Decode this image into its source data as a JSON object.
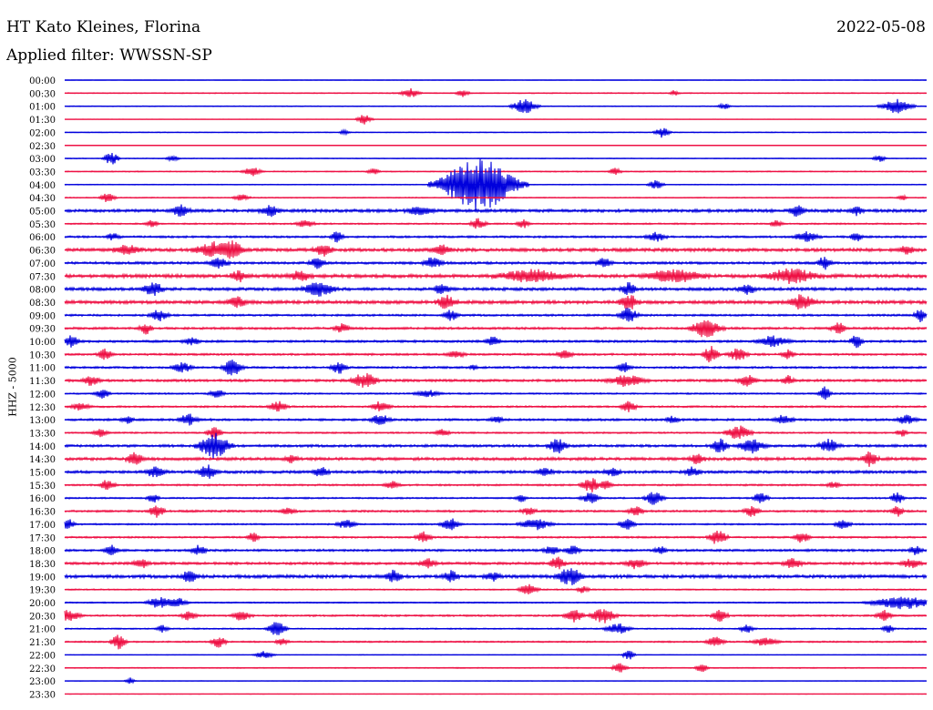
{
  "header": {
    "station": "HT Kato Kleines, Florina",
    "date": "2022-05-08",
    "filter_text": "Applied filter: WWSSN-SP",
    "channel_label": "HHZ - 5000"
  },
  "chart_data": {
    "type": "line",
    "title": "HT Kato Kleines, Florina",
    "subtitle": "Applied filter: WWSSN-SP",
    "ylabel": "HHZ - 5000",
    "colors": {
      "even_rows": "#0000dd",
      "odd_rows": "#ee1144"
    },
    "rows": [
      "00:00",
      "00:30",
      "01:00",
      "01:30",
      "02:00",
      "02:30",
      "03:00",
      "03:30",
      "04:00",
      "04:30",
      "05:00",
      "05:30",
      "06:00",
      "06:30",
      "07:00",
      "07:30",
      "08:00",
      "08:30",
      "09:00",
      "09:30",
      "10:00",
      "10:30",
      "11:00",
      "11:30",
      "12:00",
      "12:30",
      "13:00",
      "13:30",
      "14:00",
      "14:30",
      "15:00",
      "15:30",
      "16:00",
      "16:30",
      "17:00",
      "17:30",
      "18:00",
      "18:30",
      "19:00",
      "19:30",
      "20:00",
      "20:30",
      "21:00",
      "21:30",
      "22:00",
      "22:30",
      "23:00",
      "23:30"
    ],
    "noise_level": [
      0.1,
      0.4,
      0.3,
      0.1,
      0.3,
      0.1,
      0.3,
      0.4,
      0.3,
      0.4,
      1.2,
      0.6,
      0.8,
      1.3,
      1.0,
      1.4,
      1.2,
      1.3,
      0.8,
      0.9,
      0.9,
      0.8,
      0.8,
      1.0,
      0.6,
      0.7,
      0.9,
      0.6,
      1.0,
      1.2,
      1.1,
      0.7,
      0.6,
      0.8,
      0.6,
      0.7,
      0.9,
      1.0,
      1.3,
      0.5,
      0.5,
      0.7,
      0.5,
      0.6,
      0.2,
      0.4,
      0.2,
      0.1
    ],
    "events": [
      [],
      [
        [
          450,
          6,
          5
        ],
        [
          508,
          4,
          4
        ],
        [
          740,
          3,
          3
        ]
      ],
      [
        [
          576,
          8,
          8
        ],
        [
          795,
          4,
          3
        ],
        [
          984,
          10,
          8
        ]
      ],
      [
        [
          400,
          5,
          6
        ]
      ],
      [
        [
          378,
          3,
          3
        ],
        [
          727,
          5,
          6
        ]
      ],
      [],
      [
        [
          122,
          5,
          7
        ],
        [
          190,
          4,
          3
        ],
        [
          965,
          4,
          4
        ]
      ],
      [
        [
          277,
          6,
          5
        ],
        [
          410,
          4,
          3
        ],
        [
          675,
          4,
          4
        ]
      ],
      [
        [
          525,
          25,
          30
        ],
        [
          720,
          5,
          5
        ]
      ],
      [
        [
          118,
          5,
          5
        ],
        [
          265,
          5,
          4
        ],
        [
          990,
          3,
          3
        ]
      ],
      [
        [
          198,
          6,
          6
        ],
        [
          296,
          6,
          6
        ],
        [
          460,
          8,
          5
        ],
        [
          875,
          5,
          6
        ],
        [
          940,
          4,
          5
        ]
      ],
      [
        [
          167,
          4,
          4
        ],
        [
          335,
          6,
          4
        ],
        [
          525,
          5,
          6
        ],
        [
          574,
          4,
          5
        ],
        [
          852,
          4,
          4
        ]
      ],
      [
        [
          124,
          4,
          4
        ],
        [
          370,
          4,
          6
        ],
        [
          720,
          6,
          5
        ],
        [
          885,
          8,
          5
        ],
        [
          940,
          4,
          5
        ]
      ],
      [
        [
          140,
          8,
          6
        ],
        [
          235,
          12,
          8
        ],
        [
          257,
          6,
          10
        ],
        [
          355,
          6,
          6
        ],
        [
          485,
          6,
          6
        ],
        [
          995,
          4,
          6
        ]
      ],
      [
        [
          240,
          6,
          6
        ],
        [
          348,
          5,
          6
        ],
        [
          475,
          6,
          6
        ],
        [
          663,
          5,
          5
        ],
        [
          905,
          4,
          8
        ]
      ],
      [
        [
          262,
          5,
          6
        ],
        [
          330,
          7,
          6
        ],
        [
          583,
          20,
          7
        ],
        [
          740,
          18,
          7
        ],
        [
          870,
          16,
          8
        ]
      ],
      [
        [
          168,
          6,
          8
        ],
        [
          350,
          10,
          8
        ],
        [
          485,
          5,
          6
        ],
        [
          690,
          5,
          7
        ],
        [
          820,
          5,
          6
        ]
      ],
      [
        [
          260,
          6,
          6
        ],
        [
          490,
          6,
          7
        ],
        [
          690,
          6,
          8
        ],
        [
          880,
          8,
          8
        ]
      ],
      [
        [
          175,
          6,
          6
        ],
        [
          495,
          5,
          6
        ],
        [
          690,
          6,
          8
        ],
        [
          1010,
          4,
          7
        ]
      ],
      [
        [
          160,
          4,
          6
        ],
        [
          375,
          5,
          5
        ],
        [
          775,
          10,
          10
        ],
        [
          920,
          5,
          6
        ]
      ],
      [
        [
          78,
          5,
          6
        ],
        [
          210,
          5,
          4
        ],
        [
          540,
          5,
          5
        ],
        [
          848,
          10,
          6
        ],
        [
          940,
          4,
          8
        ]
      ],
      [
        [
          115,
          5,
          6
        ],
        [
          500,
          6,
          4
        ],
        [
          620,
          5,
          5
        ],
        [
          780,
          5,
          9
        ],
        [
          810,
          6,
          7
        ],
        [
          865,
          4,
          5
        ]
      ],
      [
        [
          200,
          6,
          6
        ],
        [
          255,
          6,
          10
        ],
        [
          372,
          5,
          7
        ],
        [
          520,
          3,
          3
        ],
        [
          685,
          5,
          5
        ]
      ],
      [
        [
          100,
          5,
          6
        ],
        [
          400,
          8,
          8
        ],
        [
          688,
          12,
          6
        ],
        [
          820,
          6,
          6
        ],
        [
          865,
          4,
          5
        ]
      ],
      [
        [
          112,
          5,
          5
        ],
        [
          238,
          5,
          5
        ],
        [
          470,
          8,
          4
        ],
        [
          905,
          4,
          8
        ]
      ],
      [
        [
          88,
          6,
          4
        ],
        [
          305,
          6,
          6
        ],
        [
          418,
          6,
          6
        ],
        [
          690,
          5,
          6
        ]
      ],
      [
        [
          140,
          4,
          4
        ],
        [
          207,
          6,
          6
        ],
        [
          417,
          6,
          6
        ],
        [
          545,
          4,
          4
        ],
        [
          738,
          4,
          4
        ],
        [
          860,
          6,
          5
        ],
        [
          995,
          6,
          5
        ]
      ],
      [
        [
          110,
          5,
          4
        ],
        [
          235,
          5,
          6
        ],
        [
          485,
          5,
          4
        ],
        [
          810,
          8,
          8
        ],
        [
          990,
          4,
          4
        ]
      ],
      [
        [
          235,
          10,
          14
        ],
        [
          612,
          6,
          8
        ],
        [
          790,
          5,
          8
        ],
        [
          825,
          8,
          8
        ],
        [
          910,
          6,
          8
        ]
      ],
      [
        [
          148,
          5,
          8
        ],
        [
          320,
          4,
          4
        ],
        [
          765,
          5,
          5
        ],
        [
          955,
          5,
          8
        ]
      ],
      [
        [
          170,
          6,
          6
        ],
        [
          228,
          6,
          7
        ],
        [
          352,
          5,
          5
        ],
        [
          598,
          5,
          5
        ],
        [
          672,
          5,
          5
        ],
        [
          760,
          5,
          5
        ]
      ],
      [
        [
          118,
          5,
          6
        ],
        [
          430,
          5,
          4
        ],
        [
          648,
          6,
          8
        ],
        [
          665,
          4,
          5
        ],
        [
          915,
          4,
          4
        ]
      ],
      [
        [
          168,
          4,
          5
        ],
        [
          572,
          4,
          4
        ],
        [
          648,
          6,
          6
        ],
        [
          718,
          6,
          8
        ],
        [
          835,
          5,
          6
        ],
        [
          985,
          4,
          8
        ]
      ],
      [
        [
          172,
          5,
          7
        ],
        [
          316,
          5,
          4
        ],
        [
          580,
          5,
          4
        ],
        [
          698,
          5,
          5
        ],
        [
          825,
          5,
          6
        ],
        [
          985,
          4,
          6
        ]
      ],
      [
        [
          74,
          5,
          6
        ],
        [
          380,
          6,
          5
        ],
        [
          494,
          6,
          7
        ],
        [
          588,
          10,
          6
        ],
        [
          688,
          5,
          6
        ],
        [
          925,
          5,
          6
        ]
      ],
      [
        [
          278,
          4,
          5
        ],
        [
          465,
          5,
          6
        ],
        [
          788,
          6,
          8
        ],
        [
          880,
          5,
          6
        ]
      ],
      [
        [
          122,
          5,
          6
        ],
        [
          218,
          5,
          5
        ],
        [
          605,
          5,
          5
        ],
        [
          628,
          5,
          6
        ],
        [
          725,
          4,
          4
        ],
        [
          1005,
          4,
          5
        ]
      ],
      [
        [
          155,
          5,
          5
        ],
        [
          470,
          5,
          5
        ],
        [
          612,
          5,
          7
        ],
        [
          698,
          6,
          6
        ],
        [
          870,
          6,
          6
        ],
        [
          1000,
          6,
          5
        ]
      ],
      [
        [
          208,
          5,
          7
        ],
        [
          432,
          5,
          7
        ],
        [
          495,
          5,
          6
        ],
        [
          540,
          5,
          5
        ],
        [
          625,
          8,
          10
        ]
      ],
      [
        [
          580,
          6,
          6
        ],
        [
          640,
          4,
          4
        ]
      ],
      [
        [
          175,
          8,
          6
        ],
        [
          195,
          6,
          5
        ],
        [
          990,
          20,
          7
        ]
      ],
      [
        [
          75,
          8,
          6
        ],
        [
          207,
          5,
          5
        ],
        [
          265,
          6,
          5
        ],
        [
          630,
          6,
          8
        ],
        [
          662,
          8,
          8
        ],
        [
          790,
          5,
          7
        ],
        [
          970,
          5,
          6
        ]
      ],
      [
        [
          178,
          4,
          4
        ],
        [
          304,
          6,
          8
        ],
        [
          678,
          8,
          6
        ],
        [
          820,
          5,
          4
        ],
        [
          975,
          4,
          4
        ]
      ],
      [
        [
          130,
          5,
          8
        ],
        [
          240,
          5,
          6
        ],
        [
          310,
          4,
          4
        ],
        [
          785,
          6,
          5
        ],
        [
          840,
          8,
          5
        ]
      ],
      [
        [
          290,
          6,
          4
        ],
        [
          690,
          4,
          6
        ]
      ],
      [
        [
          680,
          5,
          5
        ],
        [
          770,
          4,
          5
        ]
      ],
      [
        [
          143,
          3,
          4
        ]
      ],
      []
    ]
  }
}
